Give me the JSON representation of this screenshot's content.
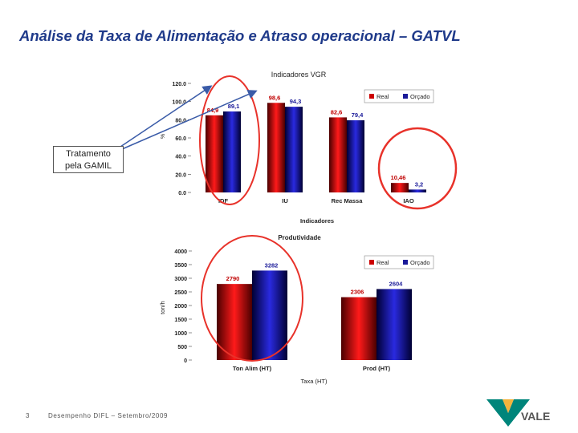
{
  "slide": {
    "title": "Análise da Taxa de Alimentação e Atraso operacional – GATVL",
    "note": [
      "Tratamento",
      "pela GAMIL"
    ],
    "page_number": "3",
    "footer": "Desempenho DIFL – Setembro/2009"
  },
  "colors": {
    "title": "#1f3a8a",
    "real": "#cc0000",
    "orcado": "#1a1a99",
    "highlight_circle": "#e8322a",
    "arrow": "#3a5ba8"
  },
  "chart_data": [
    {
      "type": "bar",
      "title": "Indicadores VGR",
      "ylabel": "%",
      "xlabel": "Indicadores",
      "categories": [
        "IDF",
        "IU",
        "Rec Massa",
        "IAO"
      ],
      "ylim": [
        0,
        120
      ],
      "yticks": [
        "0.0",
        "20.0",
        "40.0",
        "60.0",
        "80.0",
        "100.0",
        "120.0"
      ],
      "series": [
        {
          "name": "Real",
          "values": [
            84.9,
            98.6,
            82.6,
            10.46
          ],
          "labels": [
            "84,9",
            "98,6",
            "82,6",
            "10,46"
          ]
        },
        {
          "name": "Orçado",
          "values": [
            89.1,
            94.3,
            79.4,
            3.2
          ],
          "labels": [
            "89,1",
            "94,3",
            "79,4",
            "3,2"
          ]
        }
      ],
      "legend": "top-right",
      "grid": false
    },
    {
      "type": "bar",
      "title": "Produtividade",
      "ylabel": "ton/h",
      "xlabel": "Taxa (HT)",
      "categories": [
        "Ton Alim (HT)",
        "Prod (HT)"
      ],
      "ylim": [
        0,
        4000
      ],
      "yticks": [
        "0",
        "500",
        "1000",
        "1500",
        "2000",
        "2500",
        "3000",
        "3500",
        "4000"
      ],
      "series": [
        {
          "name": "Real",
          "values": [
            2790,
            2306
          ],
          "labels": [
            "2790",
            "2306"
          ]
        },
        {
          "name": "Orçado",
          "values": [
            3282,
            2604
          ],
          "labels": [
            "3282",
            "2604"
          ]
        }
      ],
      "legend": "top-right",
      "grid": false
    }
  ],
  "brand": {
    "logo_text": "VALE"
  }
}
